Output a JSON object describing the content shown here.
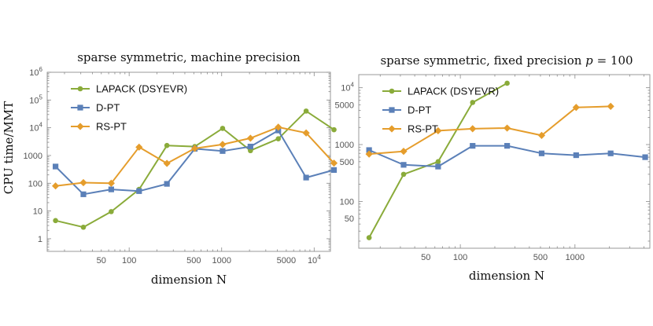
{
  "figure": {
    "shared_ylabel": "CPU time/MMT"
  },
  "colors": {
    "lapack": "#8aab3a",
    "dpt": "#5b80b8",
    "rspt": "#e59d2c",
    "frame": "#9a9a9a"
  },
  "chart_data": [
    {
      "type": "line",
      "title": "sparse symmetric, machine precision",
      "xlabel": "dimension N",
      "ylabel": "CPU time/MMT",
      "xscale": "log",
      "yscale": "log",
      "xlim": [
        13,
        15000
      ],
      "ylim": [
        0.35,
        1000000
      ],
      "legend_position": "top-left",
      "xticks": [
        {
          "v": 50,
          "label": "50"
        },
        {
          "v": 100,
          "label": "100"
        },
        {
          "v": 500,
          "label": "500"
        },
        {
          "v": 1000,
          "label": "1000"
        },
        {
          "v": 5000,
          "label": "5000"
        },
        {
          "v": 10000,
          "label": "10",
          "exp": "4"
        }
      ],
      "yticks": [
        {
          "v": 1,
          "label": "1"
        },
        {
          "v": 10,
          "label": "10"
        },
        {
          "v": 100,
          "label": "100"
        },
        {
          "v": 1000,
          "label": "1000"
        },
        {
          "v": 10000,
          "label": "10",
          "exp": "4"
        },
        {
          "v": 100000,
          "label": "10",
          "exp": "5"
        },
        {
          "v": 1000000,
          "label": "10",
          "exp": "6"
        }
      ],
      "series": [
        {
          "name": "LAPACK (DSYEVR)",
          "key": "lapack",
          "marker": "circle",
          "x": [
            16,
            32,
            64,
            128,
            256,
            512,
            1024,
            2048,
            4096,
            8192,
            16384
          ],
          "y": [
            4.5,
            2.6,
            9.5,
            60,
            2300,
            2100,
            9500,
            1500,
            4000,
            40000,
            8500
          ]
        },
        {
          "name": "D-PT",
          "key": "dpt",
          "marker": "square",
          "x": [
            16,
            32,
            64,
            128,
            256,
            512,
            1024,
            2048,
            4096,
            8192,
            16384
          ],
          "y": [
            400,
            40,
            60,
            52,
            95,
            1750,
            1450,
            2100,
            8000,
            160,
            300
          ]
        },
        {
          "name": "RS-PT",
          "key": "rspt",
          "marker": "diamond",
          "x": [
            16,
            32,
            64,
            128,
            256,
            512,
            1024,
            2048,
            4096,
            8192,
            16384
          ],
          "y": [
            80,
            105,
            100,
            2000,
            520,
            1800,
            2500,
            4200,
            10500,
            6500,
            530
          ]
        }
      ]
    },
    {
      "type": "line",
      "title": "sparse symmetric, fixed precision p = 100",
      "title_prefix": "sparse symmetric, fixed precision",
      "title_var": "p",
      "title_suffix": "= 100",
      "xlabel": "dimension N",
      "xscale": "log",
      "yscale": "log",
      "xlim": [
        13,
        4500
      ],
      "ylim": [
        15,
        17000
      ],
      "legend_position": "top-left",
      "xticks": [
        {
          "v": 50,
          "label": "50"
        },
        {
          "v": 100,
          "label": "100"
        },
        {
          "v": 500,
          "label": "500"
        },
        {
          "v": 1000,
          "label": "1000"
        }
      ],
      "yticks": [
        {
          "v": 50,
          "label": "50"
        },
        {
          "v": 100,
          "label": "100"
        },
        {
          "v": 500,
          "label": "500"
        },
        {
          "v": 1000,
          "label": "1000"
        },
        {
          "v": 5000,
          "label": "5000"
        },
        {
          "v": 10000,
          "label": "10",
          "exp": "4"
        }
      ],
      "series": [
        {
          "name": "LAPACK (DSYEVR)",
          "key": "lapack",
          "marker": "circle",
          "x": [
            16,
            32,
            64,
            128,
            256
          ],
          "y": [
            23,
            300,
            500,
            5500,
            12000
          ]
        },
        {
          "name": "D-PT",
          "key": "dpt",
          "marker": "square",
          "x": [
            16,
            32,
            64,
            128,
            256,
            512,
            1024,
            2048,
            4096
          ],
          "y": [
            800,
            440,
            410,
            950,
            950,
            700,
            650,
            700,
            600
          ]
        },
        {
          "name": "RS-PT",
          "key": "rspt",
          "marker": "diamond",
          "x": [
            16,
            32,
            64,
            128,
            256,
            512,
            1024,
            2048
          ],
          "y": [
            680,
            760,
            1750,
            1900,
            1950,
            1450,
            4500,
            4700
          ]
        }
      ]
    }
  ]
}
